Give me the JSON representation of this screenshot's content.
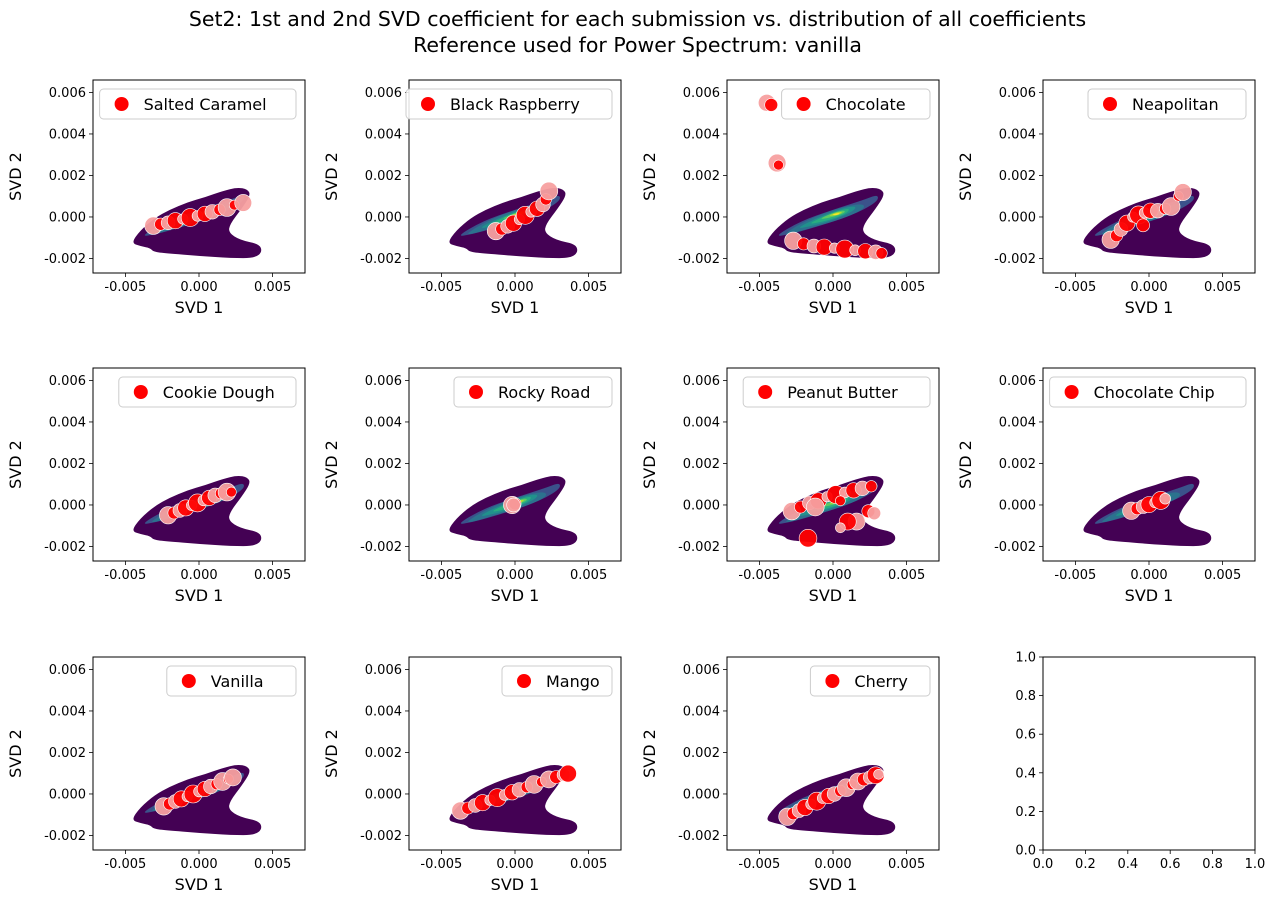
{
  "title_line1": "Set2: 1st and 2nd SVD coefficient for each submission vs. distribution of all coefficients",
  "title_line2": "Reference used for Power Spectrum: vanilla",
  "colors": {
    "marker": "#ff0000",
    "marker_light": "#f7a0a0",
    "kde_levels": [
      "#440154",
      "#3b528b",
      "#2c728e",
      "#21918c",
      "#28ae80",
      "#5ec962",
      "#addc30",
      "#fde725"
    ]
  },
  "chart_data": {
    "type": "scatter",
    "layout": {
      "rows": 3,
      "cols": 4
    },
    "shared_axes": {
      "xlabel": "SVD 1",
      "ylabel": "SVD 2",
      "xlim": [
        -0.0072,
        0.0072
      ],
      "ylim": [
        -0.0027,
        0.0066
      ],
      "xticks": [
        "-0.005",
        "0.000",
        "0.005"
      ],
      "yticks": [
        "-0.002",
        "0.000",
        "0.002",
        "0.004",
        "0.006"
      ],
      "background": "KDE density of all coefficients (viridis)",
      "legend_position": "upper right"
    },
    "panels": [
      {
        "name": "Salted Caramel",
        "points": [
          [
            -0.0031,
            -0.00042
          ],
          [
            -0.0026,
            -0.00035
          ],
          [
            -0.0021,
            -0.00028
          ],
          [
            -0.0016,
            -0.00018
          ],
          [
            -0.0011,
            -0.0001
          ],
          [
            -0.0006,
            -3e-05
          ],
          [
            -0.0001,
            5e-05
          ],
          [
            0.0004,
            0.00015
          ],
          [
            0.0009,
            0.00025
          ],
          [
            0.0014,
            0.00035
          ],
          [
            0.0019,
            0.00045
          ],
          [
            0.0024,
            0.00057
          ],
          [
            0.003,
            0.00068
          ]
        ]
      },
      {
        "name": "Black Raspberry",
        "points": [
          [
            -0.0013,
            -0.00068
          ],
          [
            -0.0009,
            -0.00058
          ],
          [
            -0.0005,
            -0.00045
          ],
          [
            -0.0001,
            -0.0003
          ],
          [
            0.0003,
            -0.00012
          ],
          [
            0.0007,
            8e-05
          ],
          [
            0.0011,
            0.00025
          ],
          [
            0.0015,
            0.0004
          ],
          [
            0.0019,
            0.0006
          ],
          [
            0.0021,
            0.00085
          ],
          [
            0.0023,
            0.00125
          ]
        ]
      },
      {
        "name": "Chocolate",
        "points": [
          [
            -0.0027,
            -0.00115
          ],
          [
            -0.002,
            -0.0013
          ],
          [
            -0.0013,
            -0.0014
          ],
          [
            -0.0006,
            -0.00145
          ],
          [
            0.0001,
            -0.0015
          ],
          [
            0.0008,
            -0.00155
          ],
          [
            0.0015,
            -0.0016
          ],
          [
            0.0022,
            -0.00165
          ],
          [
            0.0029,
            -0.0017
          ],
          [
            0.0033,
            -0.00175
          ],
          [
            -0.0038,
            0.0026
          ],
          [
            -0.0037,
            0.0025
          ],
          [
            -0.0045,
            0.0055
          ],
          [
            -0.0042,
            0.0054
          ]
        ]
      },
      {
        "name": "Neapolitan",
        "points": [
          [
            -0.0026,
            -0.0011
          ],
          [
            -0.0022,
            -0.0009
          ],
          [
            -0.0019,
            -0.0006
          ],
          [
            -0.0015,
            -0.0003
          ],
          [
            -0.0011,
            0.0
          ],
          [
            -0.0007,
            0.0001
          ],
          [
            -0.0003,
            0.0002
          ],
          [
            0.0001,
            0.0003
          ],
          [
            0.0006,
            0.0003
          ],
          [
            0.0011,
            0.0004
          ],
          [
            0.0015,
            0.0005
          ],
          [
            0.002,
            0.001
          ],
          [
            0.0023,
            0.0012
          ],
          [
            -0.0004,
            -0.0004
          ]
        ]
      },
      {
        "name": "Cookie Dough",
        "points": [
          [
            -0.0021,
            -0.0005
          ],
          [
            -0.0017,
            -0.00038
          ],
          [
            -0.0013,
            -0.00026
          ],
          [
            -0.0009,
            -0.00014
          ],
          [
            -0.0005,
            -2e-05
          ],
          [
            -0.0001,
            0.0001
          ],
          [
            0.0003,
            0.00022
          ],
          [
            0.0007,
            0.00034
          ],
          [
            0.0011,
            0.00046
          ],
          [
            0.0015,
            0.00056
          ],
          [
            0.0019,
            0.00062
          ],
          [
            0.0022,
            0.00062
          ]
        ]
      },
      {
        "name": "Rocky Road",
        "points": [
          [
            -0.0002,
            0.0
          ],
          [
            0.0,
            5e-05
          ],
          [
            -0.0001,
            0.0
          ]
        ]
      },
      {
        "name": "Peanut Butter",
        "points": [
          [
            -0.0028,
            -0.0003
          ],
          [
            -0.0022,
            -0.0001
          ],
          [
            -0.0016,
            0.0001
          ],
          [
            -0.001,
            0.0002
          ],
          [
            -0.0004,
            0.0004
          ],
          [
            0.0002,
            0.0005
          ],
          [
            0.0008,
            0.0006
          ],
          [
            0.0014,
            0.0007
          ],
          [
            0.002,
            0.0008
          ],
          [
            0.0026,
            0.0009
          ],
          [
            -0.0012,
            -0.0001
          ],
          [
            0.0005,
            0.0002
          ],
          [
            0.0016,
            -0.0008
          ],
          [
            0.0024,
            -0.0003
          ],
          [
            0.0028,
            -0.0004
          ],
          [
            0.001,
            -0.0008
          ],
          [
            0.0005,
            -0.0011
          ],
          [
            -0.0017,
            -0.0016
          ]
        ]
      },
      {
        "name": "Chocolate Chip",
        "points": [
          [
            -0.0012,
            -0.00028
          ],
          [
            -0.0008,
            -0.00018
          ],
          [
            -0.0004,
            -8e-05
          ],
          [
            0.0,
            2e-05
          ],
          [
            0.0004,
            0.00012
          ],
          [
            0.0008,
            0.00022
          ],
          [
            0.0011,
            0.0003
          ]
        ]
      },
      {
        "name": "Vanilla",
        "points": [
          [
            -0.0024,
            -0.0006
          ],
          [
            -0.002,
            -0.00048
          ],
          [
            -0.0016,
            -0.00036
          ],
          [
            -0.0012,
            -0.00024
          ],
          [
            -0.0008,
            -0.00012
          ],
          [
            -0.0004,
            0.0
          ],
          [
            0.0,
            0.00012
          ],
          [
            0.0004,
            0.00024
          ],
          [
            0.0008,
            0.00036
          ],
          [
            0.0012,
            0.00048
          ],
          [
            0.0016,
            0.0006
          ],
          [
            0.002,
            0.00072
          ],
          [
            0.0023,
            0.0008
          ]
        ]
      },
      {
        "name": "Mango",
        "points": [
          [
            -0.0037,
            -0.0008
          ],
          [
            -0.0032,
            -0.00068
          ],
          [
            -0.0027,
            -0.00055
          ],
          [
            -0.0022,
            -0.00042
          ],
          [
            -0.0017,
            -0.0003
          ],
          [
            -0.0012,
            -0.00018
          ],
          [
            -0.0007,
            -5e-05
          ],
          [
            -0.0002,
            8e-05
          ],
          [
            0.0003,
            0.0002
          ],
          [
            0.0008,
            0.00033
          ],
          [
            0.0013,
            0.00046
          ],
          [
            0.0018,
            0.00058
          ],
          [
            0.0023,
            0.0007
          ],
          [
            0.0028,
            0.00082
          ],
          [
            0.0033,
            0.00092
          ],
          [
            0.0036,
            0.00098
          ]
        ]
      },
      {
        "name": "Cherry",
        "points": [
          [
            -0.0031,
            -0.0011
          ],
          [
            -0.0027,
            -0.00095
          ],
          [
            -0.0023,
            -0.0008
          ],
          [
            -0.0019,
            -0.00065
          ],
          [
            -0.0015,
            -0.0005
          ],
          [
            -0.0011,
            -0.00035
          ],
          [
            -0.0007,
            -0.0002
          ],
          [
            -0.0003,
            -0.0001
          ],
          [
            0.0001,
            0.0
          ],
          [
            0.0005,
            0.00015
          ],
          [
            0.0009,
            0.0003
          ],
          [
            0.0013,
            0.00045
          ],
          [
            0.0017,
            0.0006
          ],
          [
            0.0021,
            0.0007
          ],
          [
            0.0025,
            0.0008
          ],
          [
            0.0029,
            0.0009
          ],
          [
            0.0031,
            0.00095
          ]
        ]
      }
    ],
    "empty_panel": {
      "xlim": [
        0,
        1
      ],
      "ylim": [
        0,
        1
      ],
      "xticks": [
        "0.0",
        "0.2",
        "0.4",
        "0.6",
        "0.8",
        "1.0"
      ],
      "yticks": [
        "0.0",
        "0.2",
        "0.4",
        "0.6",
        "0.8",
        "1.0"
      ]
    }
  }
}
